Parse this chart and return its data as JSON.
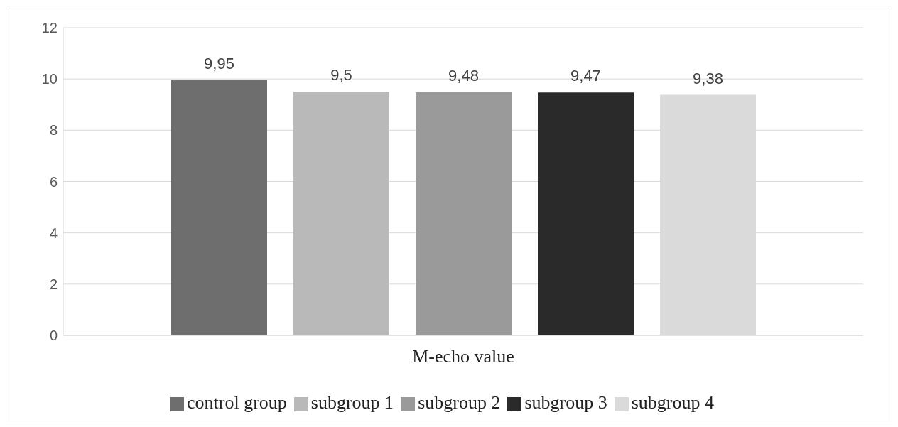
{
  "chart_data": {
    "type": "bar",
    "categories": [
      "M-echo value"
    ],
    "series": [
      {
        "name": "control group",
        "color": "#6e6e6e",
        "values": [
          9.95
        ],
        "value_labels": [
          "9,95"
        ]
      },
      {
        "name": "subgroup 1",
        "color": "#b9b9b9",
        "values": [
          9.5
        ],
        "value_labels": [
          "9,5"
        ]
      },
      {
        "name": "subgroup 2",
        "color": "#9a9a9a",
        "values": [
          9.48
        ],
        "value_labels": [
          "9,48"
        ]
      },
      {
        "name": "subgroup 3",
        "color": "#2a2a2a",
        "values": [
          9.47
        ],
        "value_labels": [
          "9,47"
        ]
      },
      {
        "name": "subgroup 4",
        "color": "#dadada",
        "values": [
          9.38
        ],
        "value_labels": [
          "9,38"
        ]
      }
    ],
    "ylim": [
      0,
      12
    ],
    "yticks": [
      0,
      2,
      4,
      6,
      8,
      10,
      12
    ],
    "grid": "y",
    "legend": "bottom"
  }
}
